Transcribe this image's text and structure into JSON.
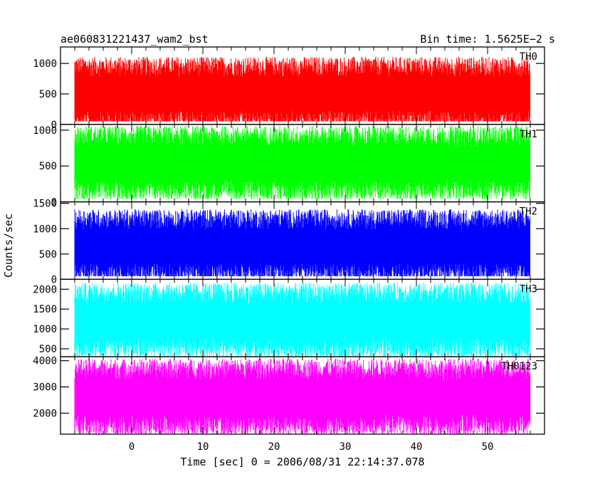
{
  "header": {
    "left": "ae060831221437_wam2_bst",
    "right": "Bin time: 1.5625E−2 s"
  },
  "axes": {
    "xlabel": "Time [sec] 0 = 2006/08/31 22:14:37.078",
    "ylabel": "Counts/sec",
    "xlim": [
      -10,
      58
    ],
    "xticks": [
      0,
      10,
      20,
      30,
      40,
      50
    ]
  },
  "chart_data": [
    {
      "type": "line",
      "name": "TH0",
      "color": "#ff0000",
      "ylim": [
        0,
        1270
      ],
      "yticks": [
        0,
        500,
        1000
      ],
      "x_range": [
        -8,
        56
      ],
      "y_min": 50,
      "y_center": 500,
      "y_max": 1270
    },
    {
      "type": "line",
      "name": "TH1",
      "color": "#00ff00",
      "ylim": [
        0,
        1080
      ],
      "yticks": [
        0,
        500,
        1000
      ],
      "x_range": [
        -8,
        56
      ],
      "y_min": 40,
      "y_center": 540,
      "y_max": 1080
    },
    {
      "type": "line",
      "name": "TH2",
      "color": "#0000ff",
      "ylim": [
        0,
        1530
      ],
      "yticks": [
        0,
        500,
        1000,
        1500
      ],
      "x_range": [
        -8,
        56
      ],
      "y_min": 60,
      "y_center": 650,
      "y_max": 1530
    },
    {
      "type": "line",
      "name": "TH3",
      "color": "#00ffff",
      "ylim": [
        300,
        2250
      ],
      "yticks": [
        500,
        1000,
        1500,
        2000
      ],
      "x_range": [
        -8,
        56
      ],
      "y_min": 320,
      "y_center": 1200,
      "y_max": 2250
    },
    {
      "type": "line",
      "name": "TH0123",
      "color": "#ff00ff",
      "ylim": [
        1200,
        4150
      ],
      "yticks": [
        2000,
        3000,
        4000
      ],
      "x_range": [
        -8,
        56
      ],
      "y_min": 1200,
      "y_center": 2600,
      "y_max": 4150
    }
  ]
}
